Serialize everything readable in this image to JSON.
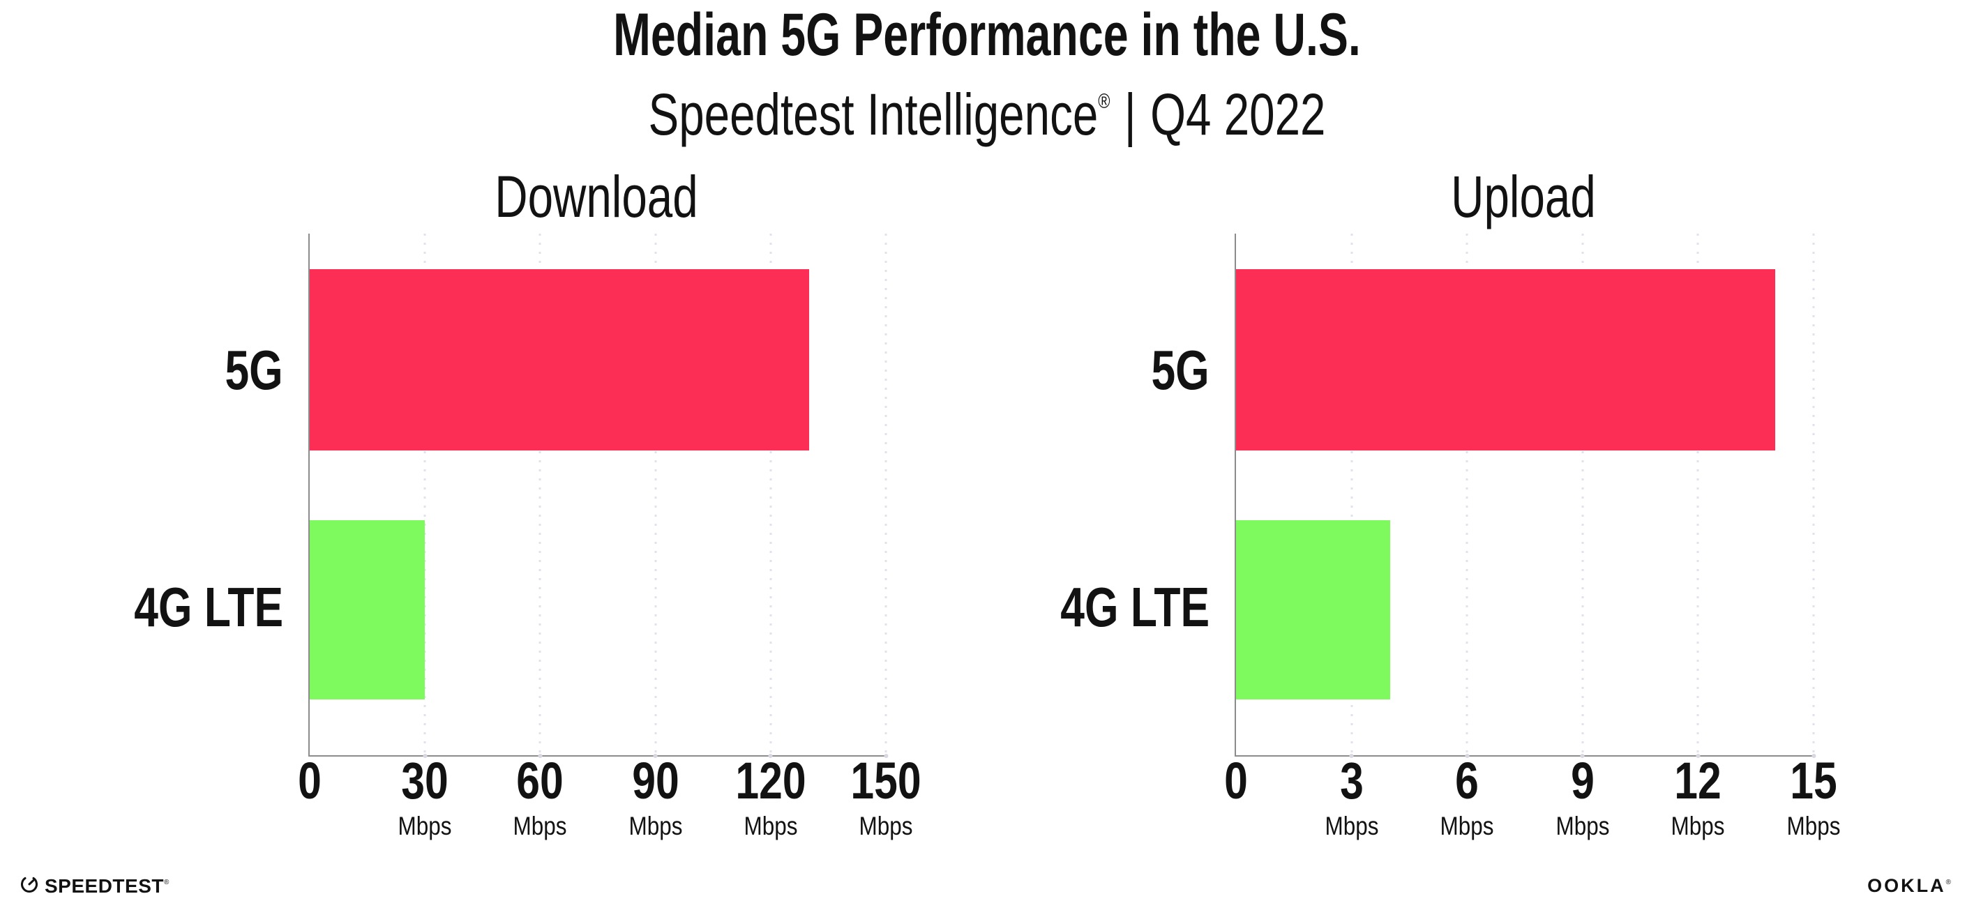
{
  "header": {
    "title": "Median 5G Performance in the U.S.",
    "subtitle_brand": "Speedtest Intelligence",
    "subtitle_registered": "®",
    "subtitle_separator": "|",
    "subtitle_period": "Q4 2022"
  },
  "chart_data": [
    {
      "type": "bar",
      "orientation": "horizontal",
      "title": "Download",
      "categories": [
        "5G",
        "4G LTE"
      ],
      "values": [
        130,
        30
      ],
      "unit": "Mbps",
      "xlim": [
        0,
        150
      ],
      "ticks": [
        {
          "label": "0"
        },
        {
          "label": "30",
          "unit": "Mbps"
        },
        {
          "label": "60",
          "unit": "Mbps"
        },
        {
          "label": "90",
          "unit": "Mbps"
        },
        {
          "label": "120",
          "unit": "Mbps"
        },
        {
          "label": "150",
          "unit": "Mbps"
        }
      ],
      "bar_colors": [
        "#fc2e56",
        "#7ffa5e"
      ],
      "grid": "vertical-dotted",
      "legend": "none"
    },
    {
      "type": "bar",
      "orientation": "horizontal",
      "title": "Upload",
      "categories": [
        "5G",
        "4G LTE"
      ],
      "values": [
        14,
        4
      ],
      "unit": "Mbps",
      "xlim": [
        0,
        15
      ],
      "ticks": [
        {
          "label": "0"
        },
        {
          "label": "3",
          "unit": "Mbps"
        },
        {
          "label": "6",
          "unit": "Mbps"
        },
        {
          "label": "9",
          "unit": "Mbps"
        },
        {
          "label": "12",
          "unit": "Mbps"
        },
        {
          "label": "15",
          "unit": "Mbps"
        }
      ],
      "bar_colors": [
        "#fc2e56",
        "#7ffa5e"
      ],
      "grid": "vertical-dotted",
      "legend": "none"
    }
  ],
  "footer": {
    "speedtest_logo_text": "SPEEDTEST",
    "speedtest_trademark": "®",
    "ookla_logo_text": "OOKLA",
    "ookla_trademark": "®"
  },
  "colors": {
    "bar_5g": "#fc2e56",
    "bar_4g_lte": "#7ffa5e",
    "axis": "#8c8c8c",
    "grid_dot": "#e1e1ec",
    "text": "#121212"
  }
}
